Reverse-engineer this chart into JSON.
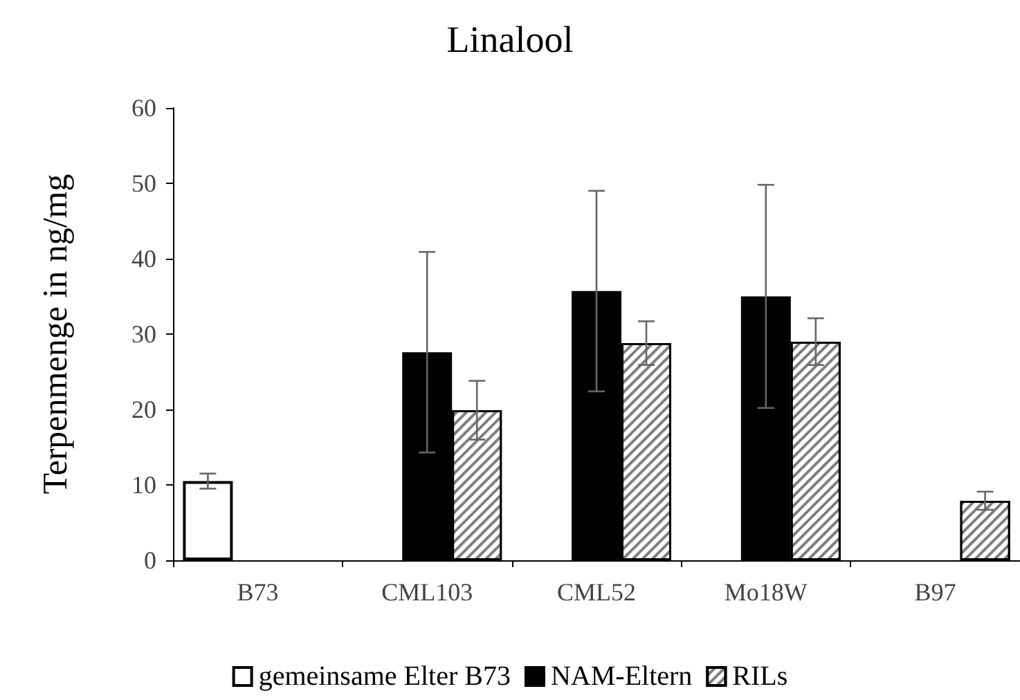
{
  "chart_data": {
    "type": "bar",
    "title": "Linalool",
    "ylabel": "Terpenmenge in ng/mg",
    "categories": [
      "B73",
      "CML103",
      "CML52",
      "Mo18W",
      "B97"
    ],
    "series": [
      {
        "name": "gemeinsame Elter B73",
        "color": "#ffffff",
        "values": [
          10.5,
          null,
          null,
          null,
          null
        ],
        "errors": [
          1.0,
          null,
          null,
          null,
          null
        ]
      },
      {
        "name": "NAM-Eltern",
        "color": "#000000",
        "values": [
          null,
          27.6,
          35.7,
          35.0,
          null
        ],
        "errors": [
          null,
          13.3,
          13.3,
          14.8,
          null
        ]
      },
      {
        "name": "RILs",
        "color": "#7f7f7f",
        "values": [
          null,
          19.9,
          28.8,
          29.0,
          7.9
        ],
        "errors": [
          null,
          3.9,
          2.9,
          3.1,
          1.2
        ]
      }
    ],
    "ylim": [
      0,
      60
    ],
    "yticks": [
      0,
      10,
      20,
      30,
      40,
      50,
      60
    ],
    "grid": false,
    "legend": "bottom"
  }
}
